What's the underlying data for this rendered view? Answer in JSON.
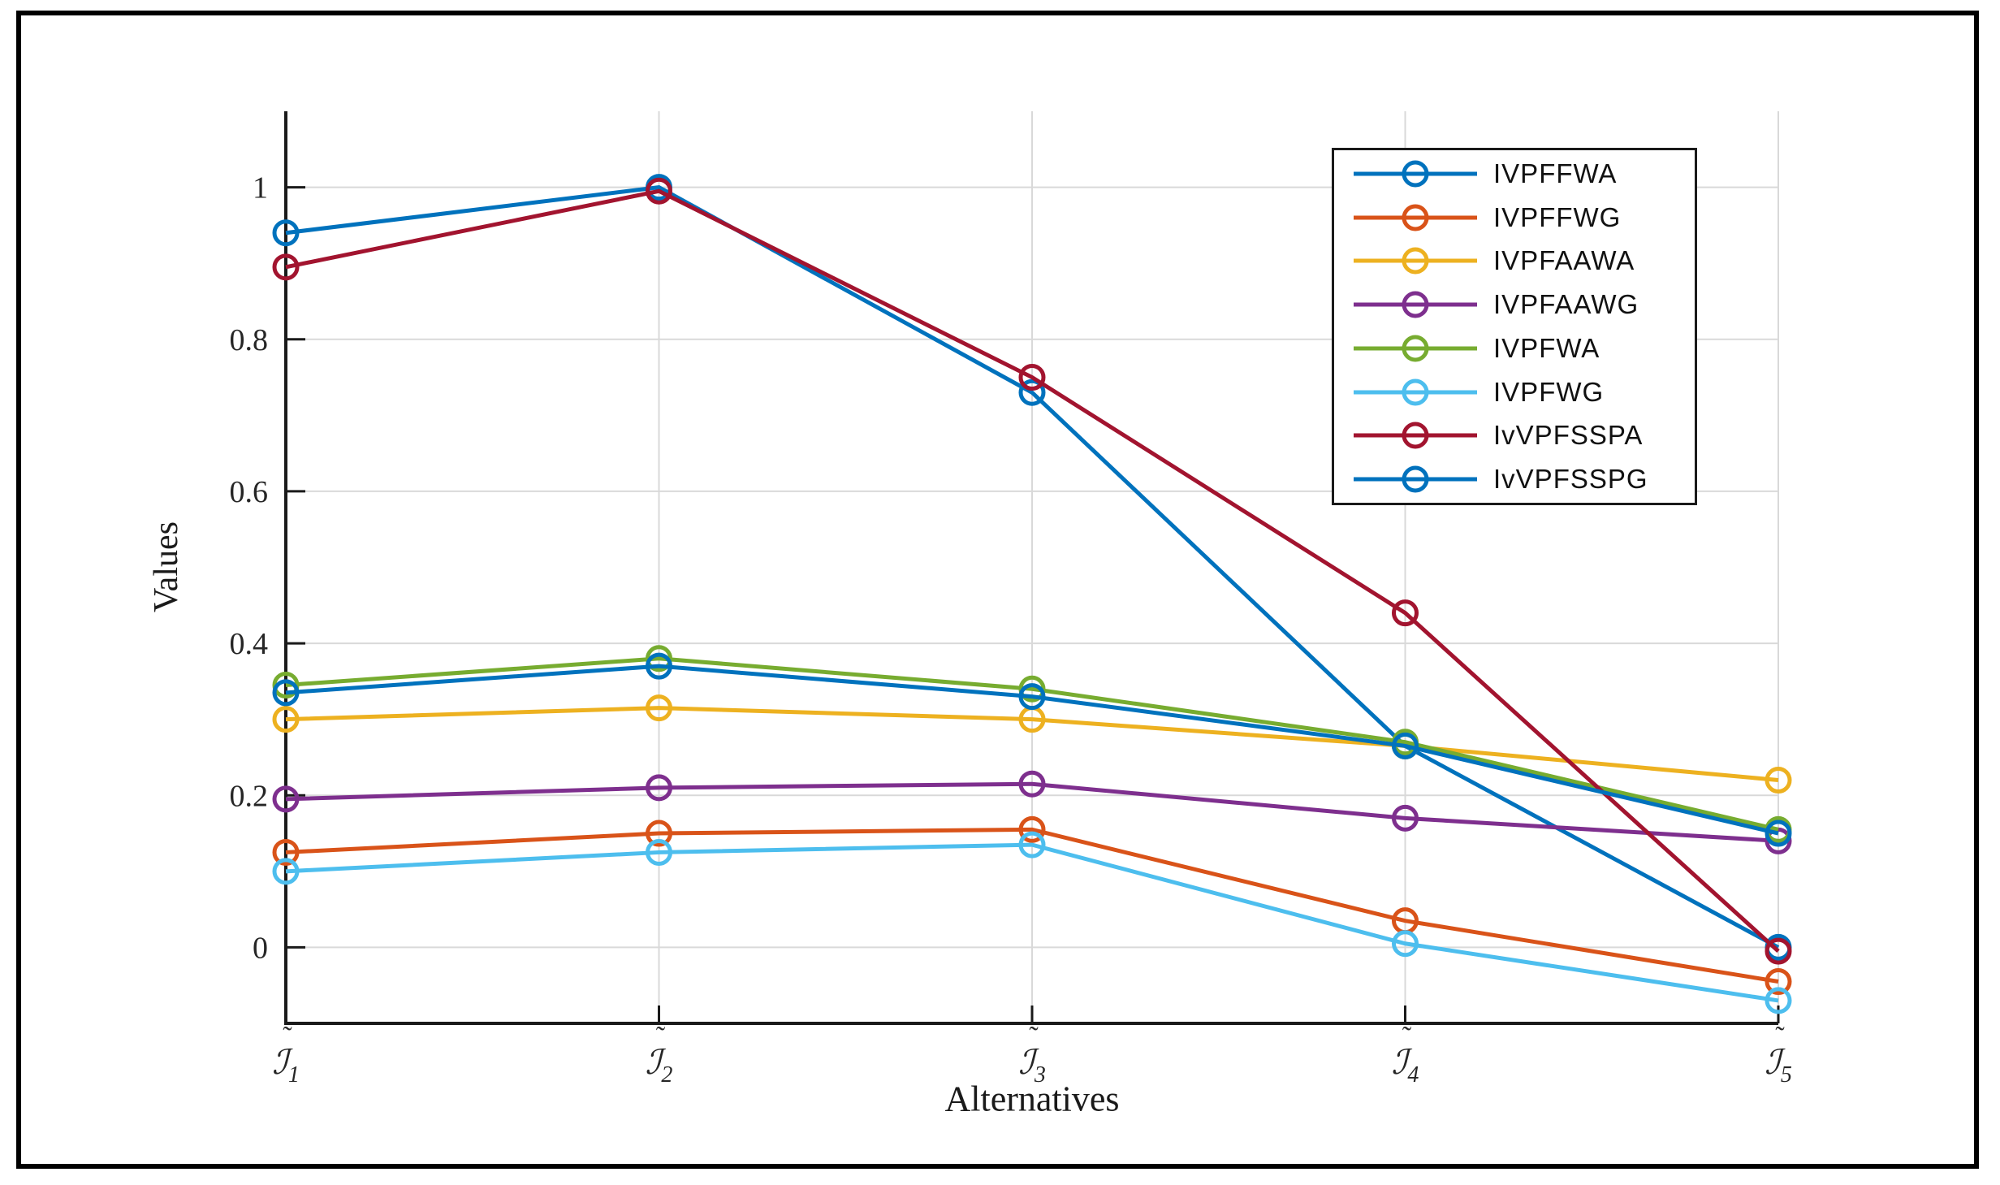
{
  "figure": {
    "xlabel": "Alternatives",
    "ylabel": "Values",
    "background": "#ffffff",
    "frame_color": "#000000"
  },
  "colors": {
    "grid": "#d9d9d9",
    "axis": "#1a1a1a",
    "tick_label": "#262626",
    "legend_border": "#1a1a1a"
  },
  "chart_data": {
    "type": "line",
    "title": "",
    "xlabel": "Alternatives",
    "ylabel": "Values",
    "ylim": [
      -0.1,
      1.1
    ],
    "grid": true,
    "legend_position": "top-right",
    "marker": "open-circle",
    "categories": [
      {
        "accent": "˜",
        "base": "ℐ",
        "sub": "1"
      },
      {
        "accent": "˜",
        "base": "ℐ",
        "sub": "2"
      },
      {
        "accent": "˜",
        "base": "ℐ",
        "sub": "3"
      },
      {
        "accent": "˜",
        "base": "ℐ",
        "sub": "4"
      },
      {
        "accent": "˜",
        "base": "ℐ",
        "sub": "5"
      }
    ],
    "yticks": [
      {
        "value": 0,
        "label": "0"
      },
      {
        "value": 0.2,
        "label": "0.2"
      },
      {
        "value": 0.4,
        "label": "0.4"
      },
      {
        "value": 0.6,
        "label": "0.6"
      },
      {
        "value": 0.8,
        "label": "0.8"
      },
      {
        "value": 1,
        "label": "1"
      }
    ],
    "series": [
      {
        "name": "IVPFFWA",
        "color": "#0072BD",
        "values": [
          0.94,
          1.0,
          0.73,
          0.265,
          0.0
        ]
      },
      {
        "name": "IVPFFWG",
        "color": "#D95319",
        "values": [
          0.125,
          0.15,
          0.155,
          0.035,
          -0.045
        ]
      },
      {
        "name": "IVPFAAWA",
        "color": "#EDB120",
        "values": [
          0.3,
          0.315,
          0.3,
          0.265,
          0.22
        ]
      },
      {
        "name": "IVPFAAWG",
        "color": "#7E2F8E",
        "values": [
          0.195,
          0.21,
          0.215,
          0.17,
          0.14
        ]
      },
      {
        "name": "IVPFWA",
        "color": "#77AC30",
        "values": [
          0.345,
          0.38,
          0.34,
          0.27,
          0.155
        ]
      },
      {
        "name": "IVPFWG",
        "color": "#4DBEEE",
        "values": [
          0.1,
          0.125,
          0.135,
          0.005,
          -0.07
        ]
      },
      {
        "name": "IvVPFSSPA",
        "color": "#A2142F",
        "values": [
          0.895,
          0.995,
          0.75,
          0.44,
          -0.005
        ]
      },
      {
        "name": "IvVPFSSPG",
        "color": "#0072BD",
        "values": [
          0.335,
          0.37,
          0.33,
          0.265,
          0.15
        ]
      }
    ]
  }
}
